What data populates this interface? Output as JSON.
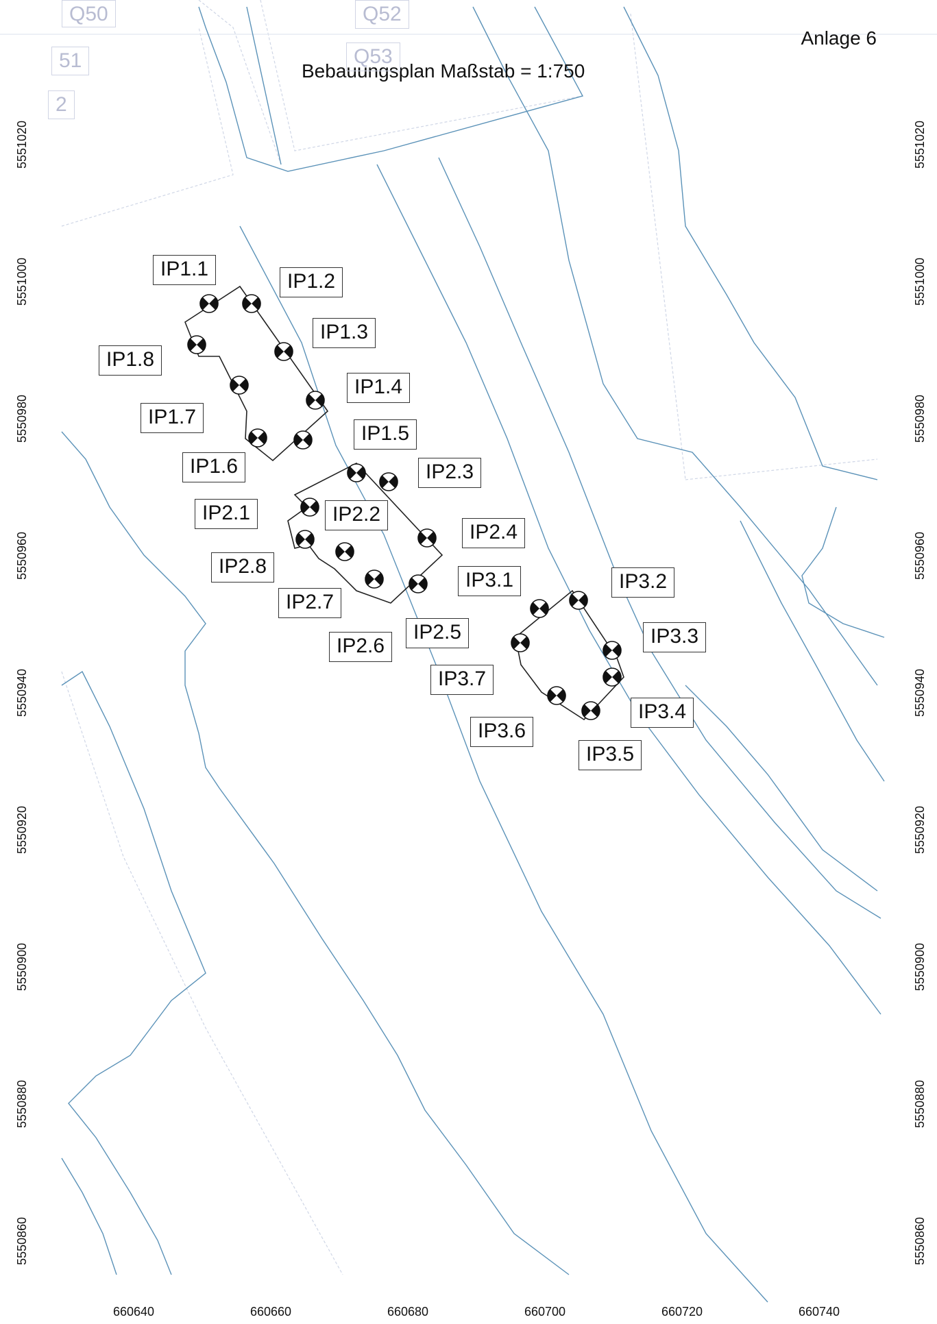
{
  "header": {
    "anlage": "Anlage 6",
    "title": "Bebauungsplan Maßstab = 1:750"
  },
  "background_labels": [
    "Q50",
    "Q52",
    "51",
    "Q53",
    "2"
  ],
  "axes": {
    "y_labels": [
      "5551020",
      "5551000",
      "5550980",
      "5550960",
      "5550940",
      "5550920",
      "5550900",
      "5550880",
      "5550860"
    ],
    "x_labels": [
      "660640",
      "660660",
      "660680",
      "660700",
      "660720",
      "660740"
    ]
  },
  "points": [
    {
      "id": "IP1.1",
      "label": "IP1.1"
    },
    {
      "id": "IP1.2",
      "label": "IP1.2"
    },
    {
      "id": "IP1.3",
      "label": "IP1.3"
    },
    {
      "id": "IP1.4",
      "label": "IP1.4"
    },
    {
      "id": "IP1.5",
      "label": "IP1.5"
    },
    {
      "id": "IP1.6",
      "label": "IP1.6"
    },
    {
      "id": "IP1.7",
      "label": "IP1.7"
    },
    {
      "id": "IP1.8",
      "label": "IP1.8"
    },
    {
      "id": "IP2.1",
      "label": "IP2.1"
    },
    {
      "id": "IP2.2",
      "label": "IP2.2"
    },
    {
      "id": "IP2.3",
      "label": "IP2.3"
    },
    {
      "id": "IP2.4",
      "label": "IP2.4"
    },
    {
      "id": "IP2.5",
      "label": "IP2.5"
    },
    {
      "id": "IP2.6",
      "label": "IP2.6"
    },
    {
      "id": "IP2.7",
      "label": "IP2.7"
    },
    {
      "id": "IP2.8",
      "label": "IP2.8"
    },
    {
      "id": "IP3.1",
      "label": "IP3.1"
    },
    {
      "id": "IP3.2",
      "label": "IP3.2"
    },
    {
      "id": "IP3.3",
      "label": "IP3.3"
    },
    {
      "id": "IP3.4",
      "label": "IP3.4"
    },
    {
      "id": "IP3.5",
      "label": "IP3.5"
    },
    {
      "id": "IP3.6",
      "label": "IP3.6"
    },
    {
      "id": "IP3.7",
      "label": "IP3.7"
    }
  ],
  "colors": {
    "contour": "#5b92b8",
    "faint": "#cfd6e6",
    "building": "#222222",
    "marker": "#111111"
  }
}
